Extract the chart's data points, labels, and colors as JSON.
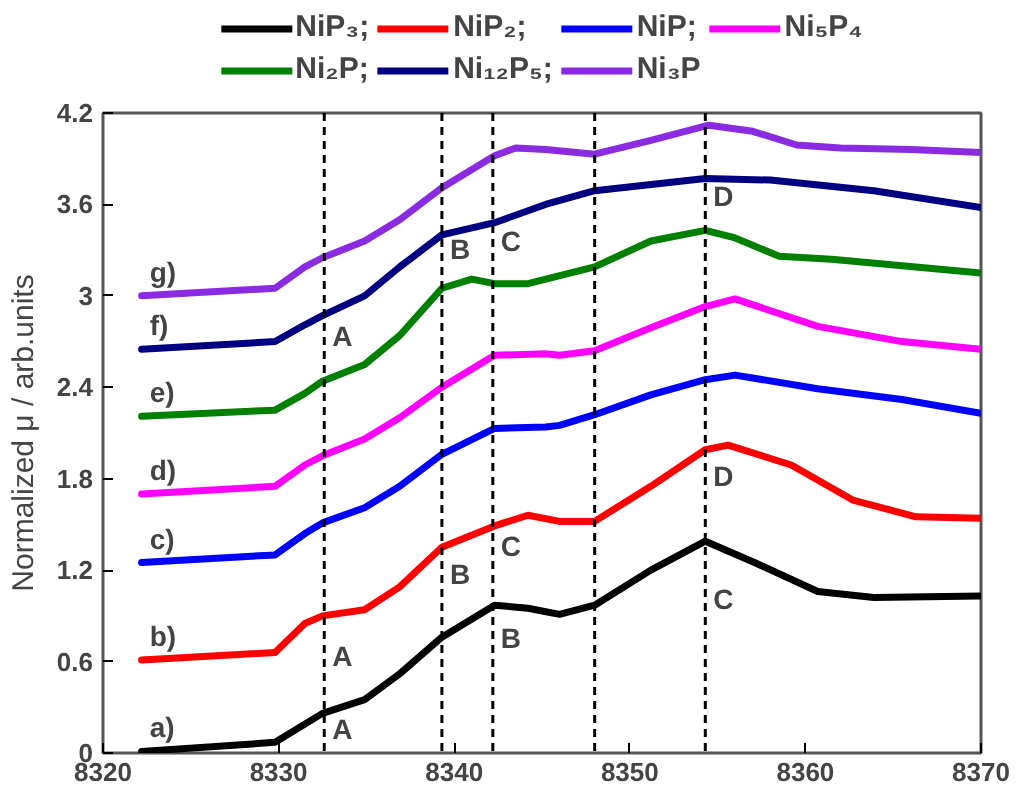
{
  "chart_data": {
    "type": "line",
    "ylabel": "Normalized μ / arb.units",
    "xlim": [
      8320,
      8370
    ],
    "xticks": [
      8320,
      8330,
      8340,
      8350,
      8360,
      8370
    ],
    "ylim": [
      0,
      4.2
    ],
    "yticks": [
      0,
      0.6,
      1.2,
      1.8,
      2.4,
      3,
      3.6,
      4.2
    ],
    "grid": false,
    "legend": "top",
    "marker": "none",
    "line_style": "solid",
    "series": [
      {
        "name": "NiP₃;",
        "color": "#000000",
        "x": [
          8322.2,
          8329.8,
          8332.5,
          8334.9,
          8336.9,
          8339.3,
          8342.3,
          8344.2,
          8346,
          8348,
          8351.2,
          8354.3,
          8357.1,
          8360.7,
          8363.9,
          8370
        ],
        "values": [
          0.01,
          0.07,
          0.26,
          0.35,
          0.52,
          0.76,
          0.97,
          0.95,
          0.91,
          0.97,
          1.2,
          1.39,
          1.25,
          1.06,
          1.02,
          1.03
        ]
      },
      {
        "name": "NiP₂;",
        "color": "#ff0000",
        "x": [
          8322.2,
          8329.8,
          8331.5,
          8332.5,
          8334.9,
          8336.9,
          8339.3,
          8342.3,
          8344.2,
          8346,
          8348,
          8351.2,
          8354.3,
          8355.6,
          8359.2,
          8362.7,
          8366.3,
          8370
        ],
        "values": [
          0.61,
          0.66,
          0.85,
          0.9,
          0.94,
          1.09,
          1.35,
          1.49,
          1.56,
          1.52,
          1.52,
          1.75,
          1.99,
          2.02,
          1.89,
          1.66,
          1.55,
          1.54
        ]
      },
      {
        "name": "NiP;",
        "color": "#0000ff",
        "x": [
          8322.2,
          8329.8,
          8331.5,
          8332.5,
          8334.9,
          8336.9,
          8339.3,
          8342.3,
          8345.2,
          8346,
          8348,
          8351.2,
          8354.3,
          8356,
          8360.7,
          8365.5,
          8370
        ],
        "values": [
          1.25,
          1.3,
          1.44,
          1.51,
          1.61,
          1.75,
          1.96,
          2.13,
          2.14,
          2.15,
          2.22,
          2.35,
          2.45,
          2.48,
          2.39,
          2.32,
          2.23
        ]
      },
      {
        "name": "Ni₅P₄",
        "color": "#ff00ff",
        "x": [
          8322.2,
          8329.8,
          8331.5,
          8332.5,
          8334.9,
          8336.9,
          8339.3,
          8342.3,
          8345.2,
          8346,
          8348,
          8351.2,
          8354.3,
          8356,
          8360.7,
          8365.5,
          8370
        ],
        "values": [
          1.7,
          1.75,
          1.89,
          1.95,
          2.06,
          2.2,
          2.4,
          2.61,
          2.62,
          2.61,
          2.64,
          2.79,
          2.93,
          2.98,
          2.8,
          2.7,
          2.65
        ]
      },
      {
        "name": "Ni₂P;",
        "color": "#008000",
        "x": [
          8322.2,
          8329.8,
          8331.5,
          8332.5,
          8334.9,
          8336.9,
          8339.3,
          8341,
          8342.3,
          8344.2,
          8348,
          8351.2,
          8354.3,
          8356,
          8358.5,
          8361.5,
          8370
        ],
        "values": [
          2.21,
          2.25,
          2.36,
          2.44,
          2.55,
          2.74,
          3.05,
          3.11,
          3.08,
          3.08,
          3.19,
          3.36,
          3.43,
          3.38,
          3.26,
          3.24,
          3.15
        ]
      },
      {
        "name": "Ni₁₂P₅;",
        "color": "#000080",
        "x": [
          8322.2,
          8329.8,
          8331.5,
          8332.5,
          8334.9,
          8336.9,
          8339.3,
          8342.3,
          8345.2,
          8348,
          8354.3,
          8358,
          8363.9,
          8370
        ],
        "values": [
          2.65,
          2.7,
          2.81,
          2.87,
          3.0,
          3.19,
          3.4,
          3.48,
          3.6,
          3.69,
          3.77,
          3.76,
          3.69,
          3.58
        ]
      },
      {
        "name": "Ni₃P",
        "color": "#8a2be2",
        "x": [
          8322.2,
          8329.8,
          8331.5,
          8332.5,
          8334.9,
          8336.9,
          8339.3,
          8342.3,
          8343.5,
          8345.2,
          8348,
          8351.2,
          8354.5,
          8357,
          8359.5,
          8362,
          8366,
          8370
        ],
        "values": [
          3.0,
          3.05,
          3.19,
          3.25,
          3.36,
          3.5,
          3.71,
          3.92,
          3.97,
          3.96,
          3.93,
          4.02,
          4.12,
          4.08,
          3.99,
          3.97,
          3.96,
          3.94
        ]
      }
    ],
    "ref_lines": [
      {
        "axis": "x",
        "value": 8332.6,
        "color": "#000000",
        "line_style": "dashed"
      },
      {
        "axis": "x",
        "value": 8339.3,
        "color": "#000000",
        "line_style": "dashed"
      },
      {
        "axis": "x",
        "value": 8342.2,
        "color": "#000000",
        "line_style": "dashed"
      },
      {
        "axis": "x",
        "value": 8348,
        "color": "#000000",
        "line_style": "dashed"
      },
      {
        "axis": "x",
        "value": 8354.3,
        "color": "#000000",
        "line_style": "dashed"
      }
    ],
    "annotations": [
      {
        "text": "a)",
        "x": 8322.2,
        "y": 0.01
      },
      {
        "text": "b)",
        "x": 8322.2,
        "y": 0.61
      },
      {
        "text": "c)",
        "x": 8322.2,
        "y": 1.25
      },
      {
        "text": "d)",
        "x": 8322.2,
        "y": 1.7
      },
      {
        "text": "e)",
        "x": 8322.2,
        "y": 2.21
      },
      {
        "text": "f)",
        "x": 8322.2,
        "y": 2.65
      },
      {
        "text": "g)",
        "x": 8322.2,
        "y": 3.0
      },
      {
        "text": "A",
        "x": 8332.6,
        "y": 0.0
      },
      {
        "text": "B",
        "x": 8342.2,
        "y": 0.6
      },
      {
        "text": "C",
        "x": 8354.3,
        "y": 0.85
      },
      {
        "text": "A",
        "x": 8332.6,
        "y": 0.48
      },
      {
        "text": "B",
        "x": 8339.3,
        "y": 1.02
      },
      {
        "text": "C",
        "x": 8342.2,
        "y": 1.2
      },
      {
        "text": "D",
        "x": 8354.3,
        "y": 1.66
      },
      {
        "text": "A",
        "x": 8332.6,
        "y": 2.58
      },
      {
        "text": "B",
        "x": 8339.3,
        "y": 3.15
      },
      {
        "text": "C",
        "x": 8342.2,
        "y": 3.2
      },
      {
        "text": "D",
        "x": 8354.3,
        "y": 3.5
      }
    ]
  }
}
